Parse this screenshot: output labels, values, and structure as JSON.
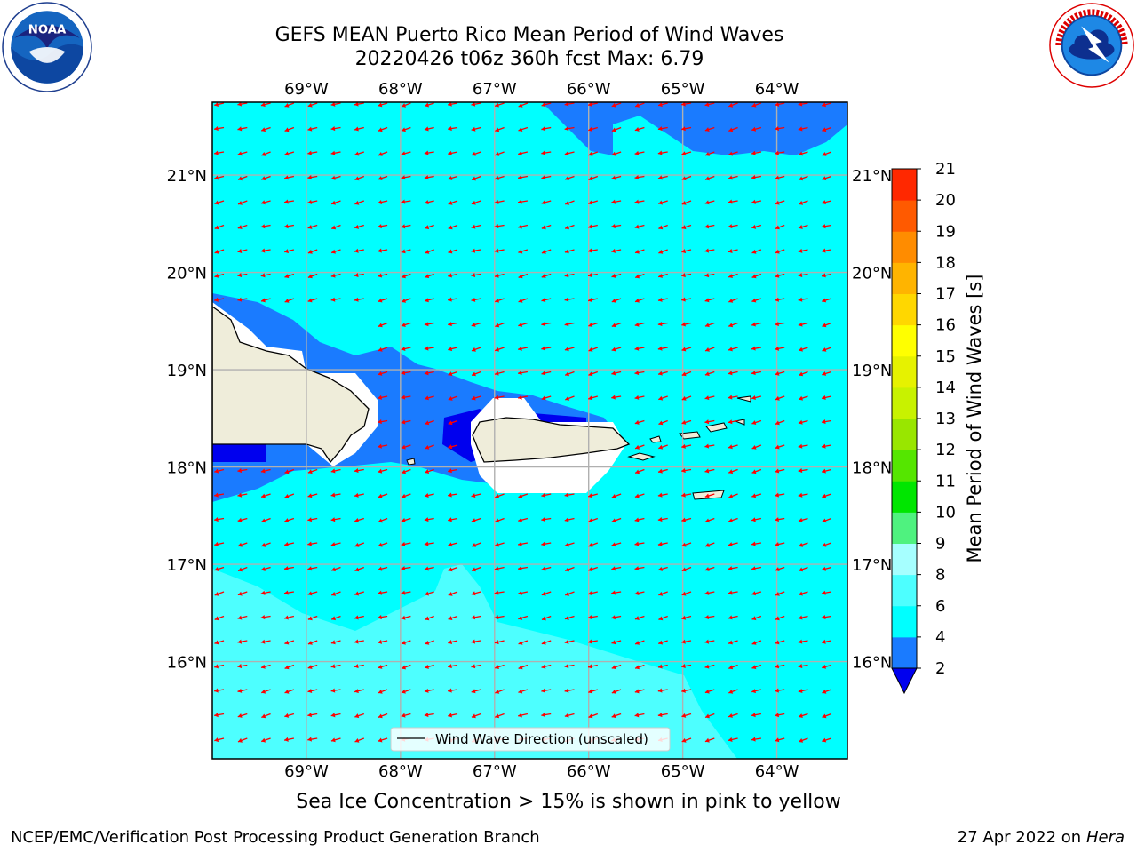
{
  "title_line1": "GEFS MEAN Puerto Rico Mean Period of Wind Waves",
  "title_line2": "20220426 t06z 360h fcst   Max: 6.79",
  "lon_ticks": [
    "69°W",
    "68°W",
    "67°W",
    "66°W",
    "65°W",
    "64°W"
  ],
  "lat_ticks": [
    "21°N",
    "20°N",
    "19°N",
    "18°N",
    "17°N",
    "16°N"
  ],
  "lon_values": [
    -69,
    -68,
    -67,
    -66,
    -65,
    -64
  ],
  "lat_values": [
    21,
    20,
    19,
    18,
    17,
    16
  ],
  "extent": {
    "lon_min": -70.0,
    "lon_max": -63.25,
    "lat_min": 15.0,
    "lat_max": 21.75
  },
  "legend_label": "Wind Wave Direction (unscaled)",
  "colorbar": {
    "label": "Mean Period of Wind Waves [s]",
    "ticks": [
      "2",
      "4",
      "6",
      "8",
      "9",
      "10",
      "11",
      "12",
      "13",
      "14",
      "15",
      "16",
      "17",
      "18",
      "19",
      "20",
      "21"
    ],
    "colors": [
      "#1a7bff",
      "#00ffff",
      "#4dffff",
      "#a6ffff",
      "#4ff27f",
      "#00e600",
      "#55e600",
      "#99e600",
      "#c8f200",
      "#e6f200",
      "#ffff00",
      "#ffd700",
      "#ffb400",
      "#ff8c00",
      "#ff5a00",
      "#ff2800",
      "#ff0000"
    ],
    "under_color": "#0000ee"
  },
  "colors": {
    "ocean": "#00ffff",
    "light_band": "#4dffff",
    "dark_band": "#1a7bff",
    "deep": "#0000ee",
    "land": "#efedda",
    "arrow": "#ff0000"
  },
  "note": "Sea Ice Concentration > 15% is shown in pink to yellow",
  "footer_left": "NCEP/EMC/Verification Post Processing Product Generation Branch",
  "footer_date": "27 Apr 2022 on",
  "footer_host": "Hera",
  "logos": {
    "left": "noaa-logo",
    "right": "nws-logo",
    "left_text": "NOAA"
  }
}
